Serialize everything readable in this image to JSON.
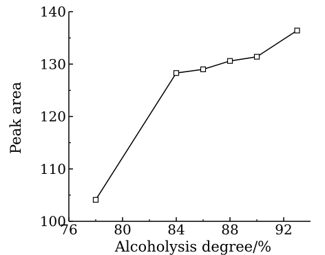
{
  "chart_data": {
    "type": "line",
    "xlabel": "Alcoholysis degree/%",
    "ylabel": "Peak area",
    "xlim": [
      76,
      94
    ],
    "ylim": [
      100,
      140
    ],
    "x_ticks": [
      76,
      80,
      84,
      88,
      92
    ],
    "y_ticks": [
      100,
      110,
      120,
      130,
      140
    ],
    "grid": false,
    "marker": "open-square",
    "line_color": "#000000",
    "series": [
      {
        "x": [
          78,
          84,
          86,
          88,
          90,
          93
        ],
        "values": [
          104.1,
          128.3,
          129.0,
          130.6,
          131.4,
          136.4
        ]
      }
    ]
  }
}
